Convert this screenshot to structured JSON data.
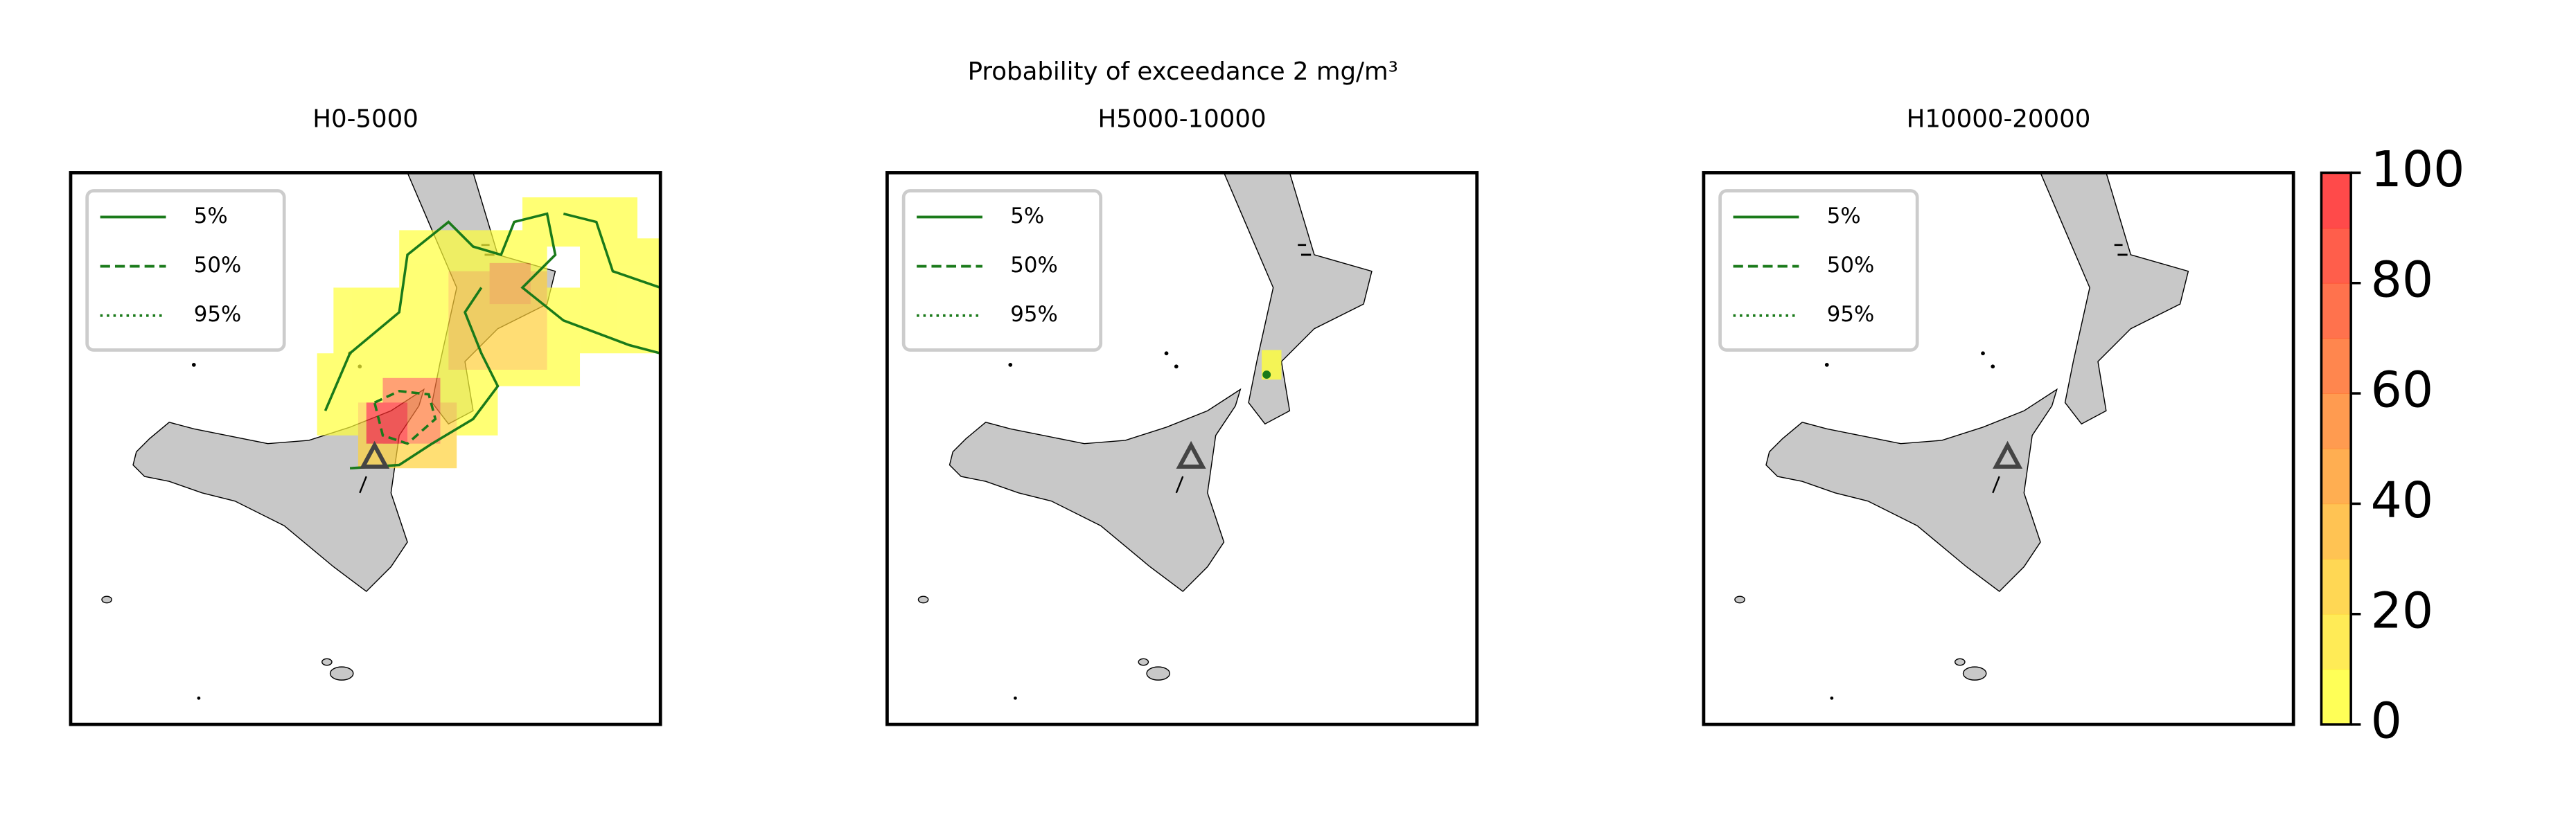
{
  "title": "Probability of exceedance 2 mg/m³",
  "panels": [
    {
      "title": "H0-5000"
    },
    {
      "title": "H5000-10000"
    },
    {
      "title": "H10000-20000"
    }
  ],
  "legend": [
    {
      "label": "5%",
      "style": "solid"
    },
    {
      "label": "50%",
      "style": "dashed"
    },
    {
      "label": "95%",
      "style": "dotted"
    }
  ],
  "legend_color": "#1a7a1a",
  "colorbar": {
    "lim": [
      0,
      100
    ],
    "ticks": [
      0,
      20,
      40,
      60,
      80,
      100
    ],
    "low_color": "#ffff3a",
    "high_color": "#ff2a2a"
  }
}
